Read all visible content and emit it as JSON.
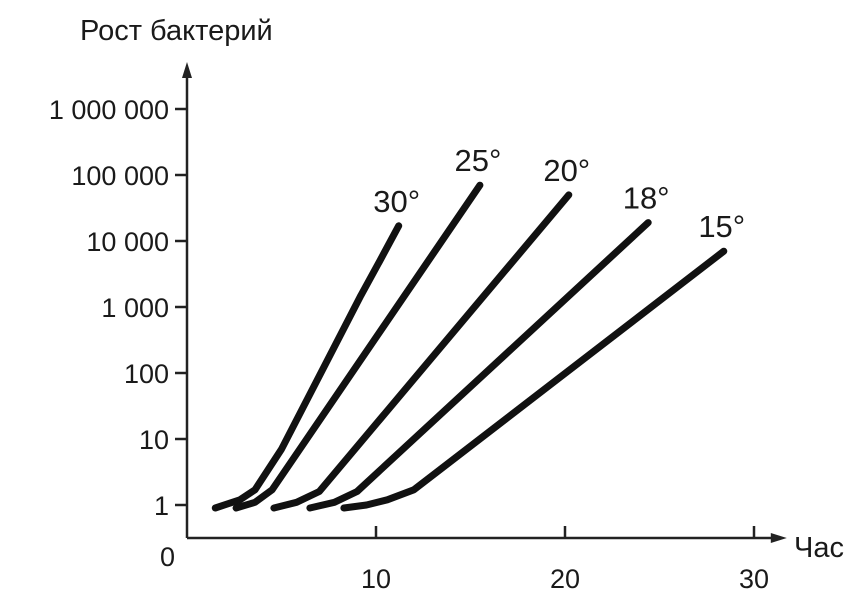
{
  "chart_data": {
    "type": "line",
    "ylabel": "Рост бактерий",
    "xlabel": "Час",
    "origin_label": "0",
    "y_scale": "log",
    "xlim": [
      0,
      32
    ],
    "ylim": [
      0.5,
      5000000
    ],
    "x_ticks": [
      10,
      20,
      30
    ],
    "x_tick_labels": [
      "10",
      "20",
      "30"
    ],
    "y_ticks": [
      1,
      10,
      100,
      1000,
      10000,
      100000,
      1000000
    ],
    "y_tick_labels": [
      "1",
      "10",
      "100",
      "1 000",
      "10 000",
      "100 000",
      "1 000 000"
    ],
    "grid": false,
    "legend": "none",
    "series": [
      {
        "name": "30°",
        "points": [
          [
            1.5,
            0.9
          ],
          [
            2.8,
            1.2
          ],
          [
            3.6,
            1.7
          ],
          [
            5.0,
            7
          ],
          [
            7.0,
            90
          ],
          [
            9.2,
            1500
          ],
          [
            10.2,
            5000
          ],
          [
            11.2,
            17000
          ]
        ]
      },
      {
        "name": "25°",
        "points": [
          [
            2.6,
            0.9
          ],
          [
            3.6,
            1.1
          ],
          [
            4.5,
            1.7
          ],
          [
            15.5,
            70000
          ]
        ]
      },
      {
        "name": "20°",
        "points": [
          [
            4.6,
            0.9
          ],
          [
            5.8,
            1.1
          ],
          [
            7.0,
            1.6
          ],
          [
            20.2,
            50000
          ]
        ]
      },
      {
        "name": "18°",
        "points": [
          [
            6.5,
            0.9
          ],
          [
            7.8,
            1.1
          ],
          [
            9.0,
            1.6
          ],
          [
            24.4,
            19000
          ]
        ]
      },
      {
        "name": "15°",
        "points": [
          [
            8.3,
            0.9
          ],
          [
            9.5,
            1.0
          ],
          [
            10.6,
            1.2
          ],
          [
            12.0,
            1.7
          ],
          [
            28.4,
            7000
          ]
        ]
      }
    ]
  }
}
